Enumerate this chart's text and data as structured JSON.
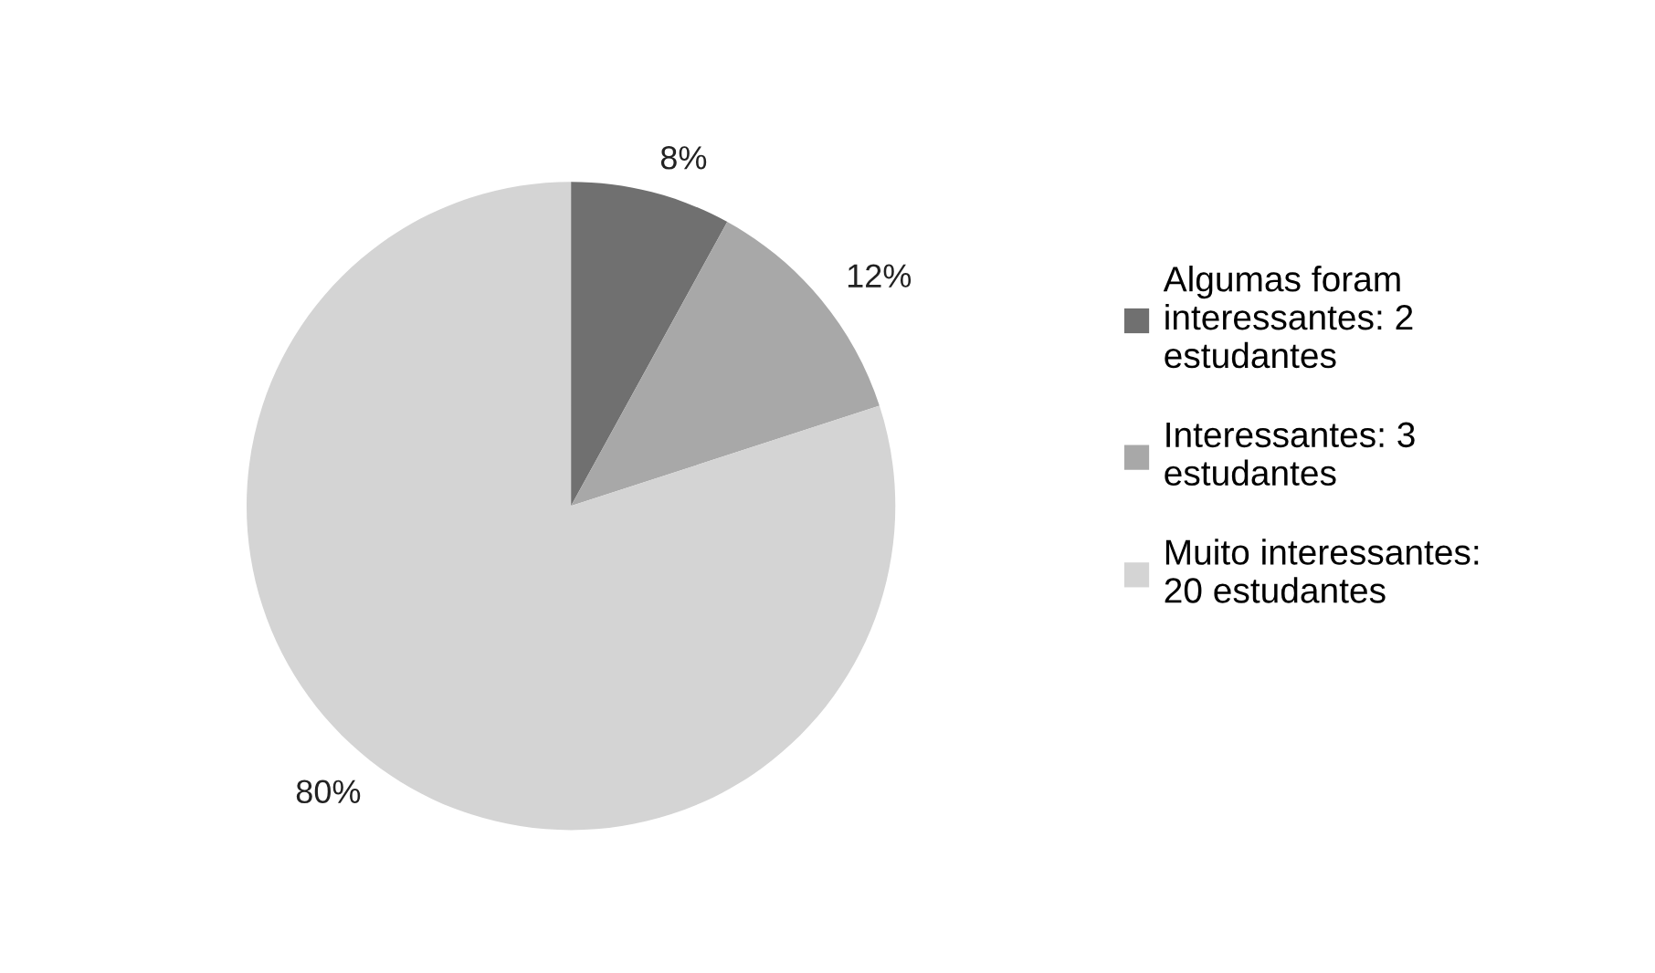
{
  "chart_data": {
    "type": "pie",
    "categories": [
      "Algumas foram interessantes: 2 estudantes",
      "Interessantes: 3 estudantes",
      "Muito interessantes: 20 estudantes"
    ],
    "values": [
      8,
      12,
      80
    ],
    "value_labels": [
      "8%",
      "12%",
      "80%"
    ],
    "colors": [
      "#707070",
      "#a8a8a8",
      "#d4d4d4"
    ],
    "legend": "right"
  }
}
